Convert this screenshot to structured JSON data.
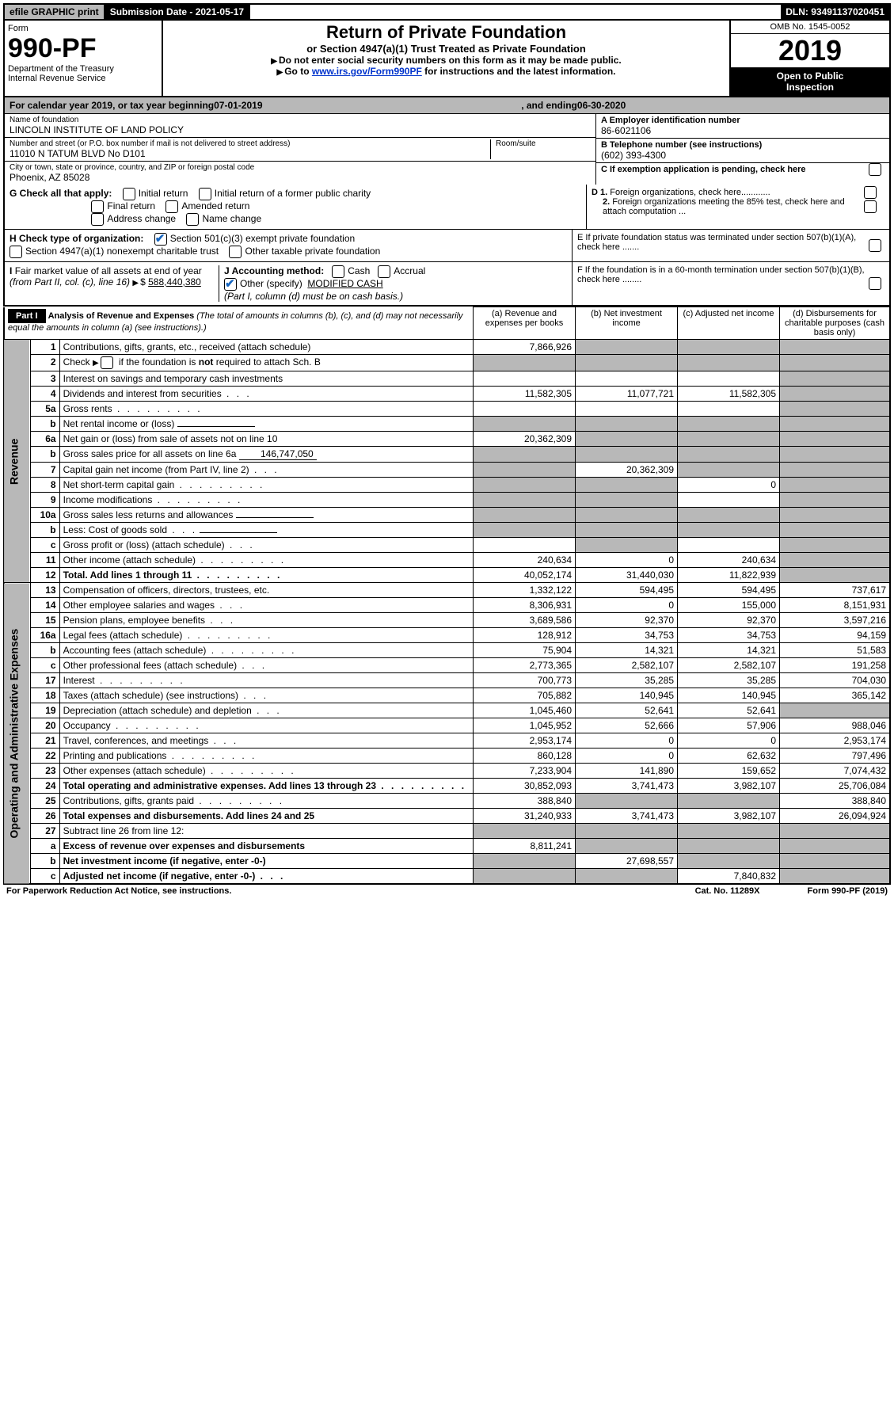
{
  "topbar": {
    "efile": "efile GRAPHIC print",
    "submission_label": "Submission Date - 2021-05-17",
    "dln": "DLN: 93491137020451"
  },
  "header": {
    "form_label": "Form",
    "form_no": "990-PF",
    "dept": "Department of the Treasury",
    "irs": "Internal Revenue Service",
    "title": "Return of Private Foundation",
    "subtitle": "or Section 4947(a)(1) Trust Treated as Private Foundation",
    "instr1": "Do not enter social security numbers on this form as it may be made public.",
    "instr2_prefix": "Go to ",
    "instr2_link": "www.irs.gov/Form990PF",
    "instr2_suffix": " for instructions and the latest information.",
    "omb": "OMB No. 1545-0052",
    "year": "2019",
    "open1": "Open to Public",
    "open2": "Inspection"
  },
  "calendar": {
    "prefix": "For calendar year 2019, or tax year beginning ",
    "begin": "07-01-2019",
    "mid": " , and ending ",
    "end": "06-30-2020"
  },
  "id": {
    "name_lbl": "Name of foundation",
    "name_val": "LINCOLN INSTITUTE OF LAND POLICY",
    "addr_lbl": "Number and street (or P.O. box number if mail is not delivered to street address)",
    "addr_val": "11010 N TATUM BLVD No D101",
    "room_lbl": "Room/suite",
    "city_lbl": "City or town, state or province, country, and ZIP or foreign postal code",
    "city_val": "Phoenix, AZ  85028",
    "a_lbl": "A Employer identification number",
    "a_val": "86-6021106",
    "b_lbl": "B Telephone number (see instructions)",
    "b_val": "(602) 393-4300",
    "c_lbl": "C If exemption application is pending, check here"
  },
  "checks": {
    "g_lbl": "G Check all that apply:",
    "g_opts": [
      "Initial return",
      "Initial return of a former public charity",
      "Final return",
      "Amended return",
      "Address change",
      "Name change"
    ],
    "h_lbl": "H Check type of organization:",
    "h_opt1": "Section 501(c)(3) exempt private foundation",
    "h_opt2": "Section 4947(a)(1) nonexempt charitable trust",
    "h_opt3": "Other taxable private foundation",
    "i_lbl": "I Fair market value of all assets at end of year (from Part II, col. (c), line 16)",
    "i_val": "588,440,380",
    "j_lbl": "J Accounting method:",
    "j_cash": "Cash",
    "j_accrual": "Accrual",
    "j_other": "Other (specify)",
    "j_other_val": "MODIFIED CASH",
    "j_note": "(Part I, column (d) must be on cash basis.)",
    "d1": "D 1. Foreign organizations, check here",
    "d2": "2. Foreign organizations meeting the 85% test, check here and attach computation",
    "e": "E  If private foundation status was terminated under section 507(b)(1)(A), check here",
    "f": "F  If the foundation is in a 60-month termination under section 507(b)(1)(B), check here"
  },
  "part1": {
    "label": "Part I",
    "title": "Analysis of Revenue and Expenses",
    "subtitle": "(The total of amounts in columns (b), (c), and (d) may not necessarily equal the amounts in column (a) (see instructions).)",
    "col_a": "(a)   Revenue and expenses per books",
    "col_b": "(b)  Net investment income",
    "col_c": "(c)  Adjusted net income",
    "col_d": "(d)  Disbursements for charitable purposes (cash basis only)",
    "side_rev": "Revenue",
    "side_exp": "Operating and Administrative Expenses"
  },
  "rows": [
    {
      "n": "1",
      "t": "Contributions, gifts, grants, etc., received (attach schedule)",
      "a": "7,866,926",
      "b": "",
      "c": "",
      "d": "",
      "grey": [
        "b",
        "c",
        "d"
      ]
    },
    {
      "n": "2",
      "t": "Check ▶ ☐ if the foundation is not required to attach Sch. B",
      "a": "",
      "b": "",
      "c": "",
      "d": "",
      "grey": [
        "a",
        "b",
        "c",
        "d"
      ],
      "raw": true
    },
    {
      "n": "3",
      "t": "Interest on savings and temporary cash investments",
      "a": "",
      "b": "",
      "c": "",
      "d": "",
      "grey": [
        "d"
      ]
    },
    {
      "n": "4",
      "t": "Dividends and interest from securities",
      "a": "11,582,305",
      "b": "11,077,721",
      "c": "11,582,305",
      "d": "",
      "grey": [
        "d"
      ],
      "dots": "short"
    },
    {
      "n": "5a",
      "t": "Gross rents",
      "a": "",
      "b": "",
      "c": "",
      "d": "",
      "grey": [
        "d"
      ],
      "dots": "long"
    },
    {
      "n": "b",
      "t": "Net rental income or (loss)",
      "a": "",
      "b": "",
      "c": "",
      "d": "",
      "grey": [
        "a",
        "b",
        "c",
        "d"
      ],
      "hasbox": true
    },
    {
      "n": "6a",
      "t": "Net gain or (loss) from sale of assets not on line 10",
      "a": "20,362,309",
      "b": "",
      "c": "",
      "d": "",
      "grey": [
        "b",
        "c",
        "d"
      ]
    },
    {
      "n": "b",
      "t": "Gross sales price for all assets on line 6a",
      "a": "",
      "b": "",
      "c": "",
      "d": "",
      "grey": [
        "a",
        "b",
        "c",
        "d"
      ],
      "inline": "146,747,050"
    },
    {
      "n": "7",
      "t": "Capital gain net income (from Part IV, line 2)",
      "a": "",
      "b": "20,362,309",
      "c": "",
      "d": "",
      "grey": [
        "a",
        "c",
        "d"
      ],
      "dots": "short"
    },
    {
      "n": "8",
      "t": "Net short-term capital gain",
      "a": "",
      "b": "",
      "c": "0",
      "d": "",
      "grey": [
        "a",
        "b",
        "d"
      ],
      "dots": "long"
    },
    {
      "n": "9",
      "t": "Income modifications",
      "a": "",
      "b": "",
      "c": "",
      "d": "",
      "grey": [
        "a",
        "b",
        "d"
      ],
      "dots": "long"
    },
    {
      "n": "10a",
      "t": "Gross sales less returns and allowances",
      "a": "",
      "b": "",
      "c": "",
      "d": "",
      "grey": [
        "a",
        "b",
        "c",
        "d"
      ],
      "hasbox": true
    },
    {
      "n": "b",
      "t": "Less: Cost of goods sold",
      "a": "",
      "b": "",
      "c": "",
      "d": "",
      "grey": [
        "a",
        "b",
        "c",
        "d"
      ],
      "hasbox": true,
      "dots": "short"
    },
    {
      "n": "c",
      "t": "Gross profit or (loss) (attach schedule)",
      "a": "",
      "b": "",
      "c": "",
      "d": "",
      "grey": [
        "b",
        "d"
      ],
      "dots": "short"
    },
    {
      "n": "11",
      "t": "Other income (attach schedule)",
      "a": "240,634",
      "b": "0",
      "c": "240,634",
      "d": "",
      "grey": [
        "d"
      ],
      "dots": "long"
    },
    {
      "n": "12",
      "t": "Total. Add lines 1 through 11",
      "a": "40,052,174",
      "b": "31,440,030",
      "c": "11,822,939",
      "d": "",
      "grey": [
        "d"
      ],
      "bold": true,
      "dots": "long"
    }
  ],
  "exp_rows": [
    {
      "n": "13",
      "t": "Compensation of officers, directors, trustees, etc.",
      "a": "1,332,122",
      "b": "594,495",
      "c": "594,495",
      "d": "737,617"
    },
    {
      "n": "14",
      "t": "Other employee salaries and wages",
      "a": "8,306,931",
      "b": "0",
      "c": "155,000",
      "d": "8,151,931",
      "dots": "short"
    },
    {
      "n": "15",
      "t": "Pension plans, employee benefits",
      "a": "3,689,586",
      "b": "92,370",
      "c": "92,370",
      "d": "3,597,216",
      "dots": "short"
    },
    {
      "n": "16a",
      "t": "Legal fees (attach schedule)",
      "a": "128,912",
      "b": "34,753",
      "c": "34,753",
      "d": "94,159",
      "dots": "long"
    },
    {
      "n": "b",
      "t": "Accounting fees (attach schedule)",
      "a": "75,904",
      "b": "14,321",
      "c": "14,321",
      "d": "51,583",
      "dots": "long"
    },
    {
      "n": "c",
      "t": "Other professional fees (attach schedule)",
      "a": "2,773,365",
      "b": "2,582,107",
      "c": "2,582,107",
      "d": "191,258",
      "dots": "short"
    },
    {
      "n": "17",
      "t": "Interest",
      "a": "700,773",
      "b": "35,285",
      "c": "35,285",
      "d": "704,030",
      "dots": "long"
    },
    {
      "n": "18",
      "t": "Taxes (attach schedule) (see instructions)",
      "a": "705,882",
      "b": "140,945",
      "c": "140,945",
      "d": "365,142",
      "dots": "short"
    },
    {
      "n": "19",
      "t": "Depreciation (attach schedule) and depletion",
      "a": "1,045,460",
      "b": "52,641",
      "c": "52,641",
      "d": "",
      "grey": [
        "d"
      ],
      "dots": "short"
    },
    {
      "n": "20",
      "t": "Occupancy",
      "a": "1,045,952",
      "b": "52,666",
      "c": "57,906",
      "d": "988,046",
      "dots": "long"
    },
    {
      "n": "21",
      "t": "Travel, conferences, and meetings",
      "a": "2,953,174",
      "b": "0",
      "c": "0",
      "d": "2,953,174",
      "dots": "short"
    },
    {
      "n": "22",
      "t": "Printing and publications",
      "a": "860,128",
      "b": "0",
      "c": "62,632",
      "d": "797,496",
      "dots": "long"
    },
    {
      "n": "23",
      "t": "Other expenses (attach schedule)",
      "a": "7,233,904",
      "b": "141,890",
      "c": "159,652",
      "d": "7,074,432",
      "dots": "long"
    },
    {
      "n": "24",
      "t": "Total operating and administrative expenses. Add lines 13 through 23",
      "a": "30,852,093",
      "b": "3,741,473",
      "c": "3,982,107",
      "d": "25,706,084",
      "bold": true,
      "dots": "long"
    },
    {
      "n": "25",
      "t": "Contributions, gifts, grants paid",
      "a": "388,840",
      "b": "",
      "c": "",
      "d": "388,840",
      "grey": [
        "b",
        "c"
      ],
      "dots": "long"
    },
    {
      "n": "26",
      "t": "Total expenses and disbursements. Add lines 24 and 25",
      "a": "31,240,933",
      "b": "3,741,473",
      "c": "3,982,107",
      "d": "26,094,924",
      "bold": true
    }
  ],
  "sub_rows": [
    {
      "n": "27",
      "t": "Subtract line 26 from line 12:",
      "a": "",
      "b": "",
      "c": "",
      "d": "",
      "grey": [
        "a",
        "b",
        "c",
        "d"
      ]
    },
    {
      "n": "a",
      "t": "Excess of revenue over expenses and disbursements",
      "a": "8,811,241",
      "b": "",
      "c": "",
      "d": "",
      "grey": [
        "b",
        "c",
        "d"
      ],
      "bold": true
    },
    {
      "n": "b",
      "t": "Net investment income (if negative, enter -0-)",
      "a": "",
      "b": "27,698,557",
      "c": "",
      "d": "",
      "grey": [
        "a",
        "c",
        "d"
      ],
      "bold": true
    },
    {
      "n": "c",
      "t": "Adjusted net income (if negative, enter -0-)",
      "a": "",
      "b": "",
      "c": "7,840,832",
      "d": "",
      "grey": [
        "a",
        "b",
        "d"
      ],
      "bold": true,
      "dots": "short"
    }
  ],
  "footer": {
    "left": "For Paperwork Reduction Act Notice, see instructions.",
    "cat": "Cat. No. 11289X",
    "form": "Form 990-PF (2019)"
  },
  "colors": {
    "grey": "#b8b8b8",
    "link": "#0033cc",
    "check": "#1565c0"
  }
}
